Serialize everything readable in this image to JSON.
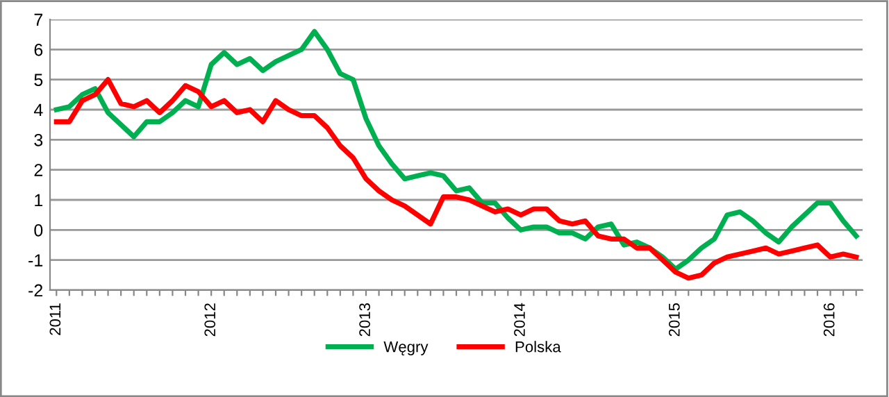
{
  "chart_data": {
    "type": "line",
    "categories": [
      "2011",
      null,
      null,
      null,
      null,
      null,
      null,
      null,
      null,
      null,
      null,
      null,
      "2012",
      null,
      null,
      null,
      null,
      null,
      null,
      null,
      null,
      null,
      null,
      null,
      "2013",
      null,
      null,
      null,
      null,
      null,
      null,
      null,
      null,
      null,
      null,
      null,
      "2014",
      null,
      null,
      null,
      null,
      null,
      null,
      null,
      null,
      null,
      null,
      null,
      "2015",
      null,
      null,
      null,
      null,
      null,
      null,
      null,
      null,
      null,
      null,
      null,
      "2016",
      null,
      null
    ],
    "series": [
      {
        "name": "Węgry",
        "color": "#00b050",
        "values": [
          4.0,
          4.1,
          4.5,
          4.7,
          3.9,
          3.5,
          3.1,
          3.6,
          3.6,
          3.9,
          4.3,
          4.1,
          5.5,
          5.9,
          5.5,
          5.7,
          5.3,
          5.6,
          5.8,
          6.0,
          6.6,
          6.0,
          5.2,
          5.0,
          3.7,
          2.8,
          2.2,
          1.7,
          1.8,
          1.9,
          1.8,
          1.3,
          1.4,
          0.9,
          0.9,
          0.4,
          0.0,
          0.1,
          0.1,
          -0.1,
          -0.1,
          -0.3,
          0.1,
          0.2,
          -0.5,
          -0.4,
          -0.6,
          -0.9,
          -1.3,
          -1.0,
          -0.6,
          -0.3,
          0.5,
          0.6,
          0.3,
          -0.1,
          -0.4,
          0.1,
          0.5,
          0.9,
          0.9,
          0.3,
          -0.2
        ]
      },
      {
        "name": "Polska",
        "color": "#ff0000",
        "values": [
          3.6,
          3.6,
          4.3,
          4.5,
          5.0,
          4.2,
          4.1,
          4.3,
          3.9,
          4.3,
          4.8,
          4.6,
          4.1,
          4.3,
          3.9,
          4.0,
          3.6,
          4.3,
          4.0,
          3.8,
          3.8,
          3.4,
          2.8,
          2.4,
          1.7,
          1.3,
          1.0,
          0.8,
          0.5,
          0.2,
          1.1,
          1.1,
          1.0,
          0.8,
          0.6,
          0.7,
          0.5,
          0.7,
          0.7,
          0.3,
          0.2,
          0.3,
          -0.2,
          -0.3,
          -0.3,
          -0.6,
          -0.6,
          -1.0,
          -1.4,
          -1.6,
          -1.5,
          -1.1,
          -0.9,
          -0.8,
          -0.7,
          -0.6,
          -0.8,
          -0.7,
          -0.6,
          -0.5,
          -0.9,
          -0.8,
          -0.9
        ]
      }
    ],
    "ylim": [
      -2,
      7
    ],
    "yticks": [
      -2,
      -1,
      0,
      1,
      2,
      3,
      4,
      5,
      6,
      7
    ],
    "grid": "y",
    "legend": "bottom",
    "marker": "none",
    "line_style": "solid"
  }
}
